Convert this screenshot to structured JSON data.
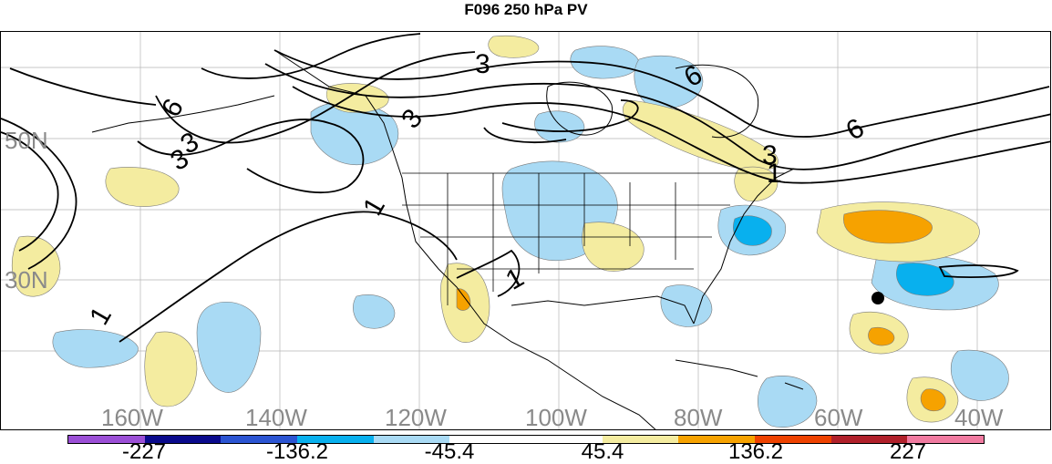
{
  "title": "F096 250 hPa PV",
  "lat_labels": [
    "50N",
    "30N"
  ],
  "lon_labels": [
    "160W",
    "140W",
    "120W",
    "100W",
    "80W",
    "60W",
    "40W"
  ],
  "contour_labels": [
    "6",
    "3",
    "1",
    "3",
    "6",
    "3",
    "3",
    "3",
    "6",
    "1",
    "1",
    "1"
  ],
  "colorbar": {
    "colors": [
      "#9b4fd6",
      "#0a0a8c",
      "#2b54d2",
      "#08b0ee",
      "#a9daf4",
      "#ffffff",
      "#ffffff",
      "#f4eca0",
      "#f6a200",
      "#ee4200",
      "#b0202a",
      "#f07aa0"
    ],
    "labels": [
      "-227",
      "-136.2",
      "-45.4",
      "45.4",
      "136.2",
      "227"
    ]
  },
  "colors": {
    "light_blue": "#a9daf4",
    "mid_blue": "#08b0ee",
    "light_yellow": "#f4eca0",
    "orange": "#f6a200"
  }
}
